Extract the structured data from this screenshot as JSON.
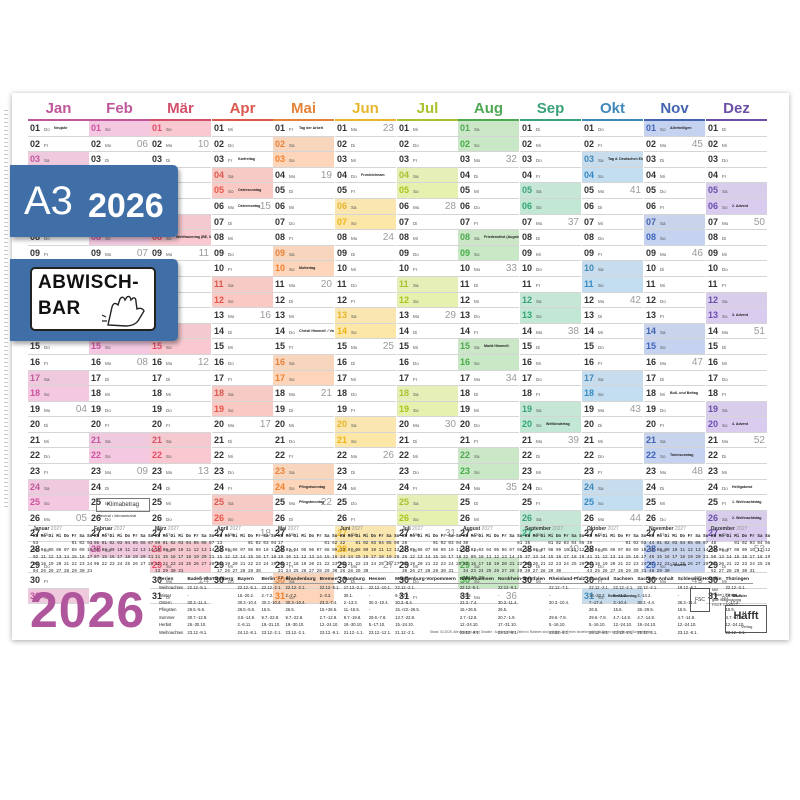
{
  "badge_format": "A3",
  "badge_year": "2026",
  "badge_wipe_line1": "ABWISCH-",
  "badge_wipe_line2": "BAR",
  "big_year": "2026",
  "logo_text": "Klimabetrag",
  "logo_sub": "Neutral • klimaneutral",
  "brand": "Häfft",
  "brand_sub": "Verlag",
  "fsc_text": [
    "MIX",
    "Papier | Fördert",
    "gute Waldnutzung",
    "FSC® C106512"
  ],
  "footnote": "Stand: 02.2025, Alle Angaben ohne Gewähr · Auf den letzten Zeilen in Rahmen sind möglich, für Ferien beziehen sich die Daten zur Berlin und Sommerferien.",
  "months": [
    {
      "name": "Jan",
      "color": "#c0579a",
      "tint": "#efc9de"
    },
    {
      "name": "Feb",
      "color": "#c0579a",
      "tint": "#efc9de"
    },
    {
      "name": "Mär",
      "color": "#d3506a",
      "tint": "#f4c9d0"
    },
    {
      "name": "Apr",
      "color": "#d9594e",
      "tint": "#f6cac5"
    },
    {
      "name": "Mai",
      "color": "#e5823a",
      "tint": "#f8d6be"
    },
    {
      "name": "Jun",
      "color": "#e8b52d",
      "tint": "#f9e6b0"
    },
    {
      "name": "Jul",
      "color": "#a9c22f",
      "tint": "#e6efb7"
    },
    {
      "name": "Aug",
      "color": "#4fa852",
      "tint": "#cce7c8"
    },
    {
      "name": "Sep",
      "color": "#3aa278",
      "tint": "#c6e6d6"
    },
    {
      "name": "Okt",
      "color": "#3f88b8",
      "tint": "#c7ddee"
    },
    {
      "name": "Nov",
      "color": "#4364ae",
      "tint": "#c8d3ec"
    },
    {
      "name": "Dez",
      "color": "#6b4fa6",
      "tint": "#d8cdeb"
    }
  ],
  "weekday_abbr": [
    "Mo",
    "Di",
    "Mi",
    "Do",
    "Fr",
    "Sa",
    "So"
  ],
  "holidays": {
    "0-1": "Neujahr",
    "0-6": "Hl. Drei Könige",
    "2-8": "Weltfrauentag (BE, MV)",
    "3-3": "Karfreitag",
    "3-5": "Ostersonntag",
    "3-6": "Ostermontag",
    "4-1": "Tag der Arbeit",
    "4-10": "Muttertag",
    "4-14": "Christi Himmelf. / Vatertag",
    "4-24": "Pfingstsonntag",
    "4-25": "Pfingstmontag",
    "5-4": "Fronleichnam",
    "6-0": "",
    "7-8": "Friedensfest (Augsburg)",
    "7-15": "Mariä Himmelf.",
    "8-20": "Weltkindertag",
    "9-3": "Tag d. Deutschen Einheit",
    "9-31": "Reformationstag",
    "10-1": "Allerheiligen",
    "10-18": "Buß- und Bettag",
    "10-22": "Totensonntag",
    "10-29": "1. Advent",
    "11-6": "2. Advent",
    "11-13": "3. Advent",
    "11-20": "4. Advent",
    "11-24": "Heiligabend",
    "11-25": "1. Weihnachtstag",
    "11-26": "2. Weihnachtstag",
    "11-31": "Silvester"
  },
  "mini_months": [
    {
      "name": "Januar",
      "year": "2027"
    },
    {
      "name": "Februar",
      "year": "2027"
    },
    {
      "name": "März",
      "year": "2027"
    },
    {
      "name": "April",
      "year": "2027"
    },
    {
      "name": "Mai",
      "year": "2027"
    },
    {
      "name": "Juni",
      "year": "2027"
    },
    {
      "name": "Juli",
      "year": "2027"
    },
    {
      "name": "August",
      "year": "2027"
    },
    {
      "name": "September",
      "year": "2027"
    },
    {
      "name": "Oktober",
      "year": "2027"
    },
    {
      "name": "November",
      "year": "2027"
    },
    {
      "name": "Dezember",
      "year": "2027"
    }
  ],
  "mini_header": "KW Mo Di Mi Do Fr Sa So",
  "ferien_header": [
    "Ferien",
    "Baden-Württemberg",
    "Bayern",
    "Berlin",
    "Brandenburg",
    "Bremen",
    "Hamburg",
    "Hessen",
    "Mecklenburg-Vorpommern",
    "Niedersachsen",
    "Nordrhein-Westfalen",
    "Rheinland-Pfalz",
    "Saarland",
    "Sachsen",
    "Sachsen-Anhalt",
    "Schleswig-Holstein",
    "Thüringen"
  ],
  "ferien_rows": [
    [
      "Weihnachten",
      "22.12.-5.1.",
      "22.12.-5.1.",
      "22.12.-2.1.",
      "22.12.-2.1.",
      "22.12.-5.1.",
      "17.12.-2.1.",
      "22.12.-10.1.",
      "22.12.-2.1.",
      "22.12.-5.1.",
      "22.12.-6.1.",
      "22.12.-7.1.",
      "22.12.-2.1.",
      "22.12.-2.1.",
      "22.12.-2.1.",
      "19.12.-6.1.",
      "22.12.-3.1."
    ],
    [
      "Winter",
      "-",
      "16.-20.2.",
      "2.-7.2.",
      "2.-7.2.",
      "2.-3.2.",
      "30.1.",
      "-",
      "9.-20.2.",
      "2.-3.2.",
      "-",
      "-",
      "16.-20.2.",
      "9.-21.2.",
      "2.-14.2.",
      "-",
      "16.-21.2."
    ],
    [
      "Ostern",
      "30.3.-11.4.",
      "30.3.-10.4.",
      "30.3.-10.4.",
      "30.3.-10.4.",
      "23.3.-7.4.",
      "2.-13.3.",
      "30.3.-10.4.",
      "30.3.-8.4.",
      "23.3.-7.4.",
      "30.3.-11.4.",
      "30.3.-10.4.",
      "7.-17.4.",
      "3.-10.4.",
      "30.3.-4.4.",
      "26.3.-11.4.",
      "7.-17.4."
    ],
    [
      "Pfingsten",
      "26.5.-5.6.",
      "26.5.-5.6.",
      "15.5.",
      "26.5.",
      "15.+26.5.",
      "11.-15.5.",
      "-",
      "15.+22.-26.5.",
      "15.+26.5.",
      "26.5.",
      "-",
      "26.5.",
      "15.5.",
      "26.-29.5.",
      "15.5.",
      "15.5."
    ],
    [
      "Sommer",
      "30.7.-12.9.",
      "3.8.-14.9.",
      "9.7.-22.8.",
      "9.7.-22.8.",
      "2.7.-12.8.",
      "9.7.-19.8.",
      "29.6.-7.8.",
      "13.7.-22.8.",
      "2.7.-12.8.",
      "20.7.-1.9.",
      "29.6.-7.8.",
      "29.6.-7.8.",
      "4.7.-14.8.",
      "4.7.-14.8.",
      "4.7.-14.8.",
      "4.7.-14.8."
    ],
    [
      "Herbst",
      "26.-30.10.",
      "2.-6.11.",
      "19.-31.10.",
      "19.-30.10.",
      "12.-24.10.",
      "19.-30.10.",
      "5.-17.10.",
      "15.-24.10.",
      "12.-24.10.",
      "17.-31.10.",
      "5.-16.10.",
      "5.-16.10.",
      "12.-24.10.",
      "19.-24.10.",
      "12.-24.10.",
      "12.-24.10."
    ],
    [
      "Weihnachten",
      "23.12.-9.1.",
      "24.12.-8.1.",
      "23.12.-2.1.",
      "23.12.-2.1.",
      "23.12.-9.1.",
      "21.12.-1.1.",
      "23.12.-12.1.",
      "21.12.-2.1.",
      "23.12.-9.1.",
      "23.12.-6.1.",
      "23.12.-8.1.",
      "23.12.-8.1.",
      "23.12.-2.1.",
      "21.12.-2.1.",
      "23.12.-8.1.",
      "23.12.-2.1."
    ]
  ]
}
